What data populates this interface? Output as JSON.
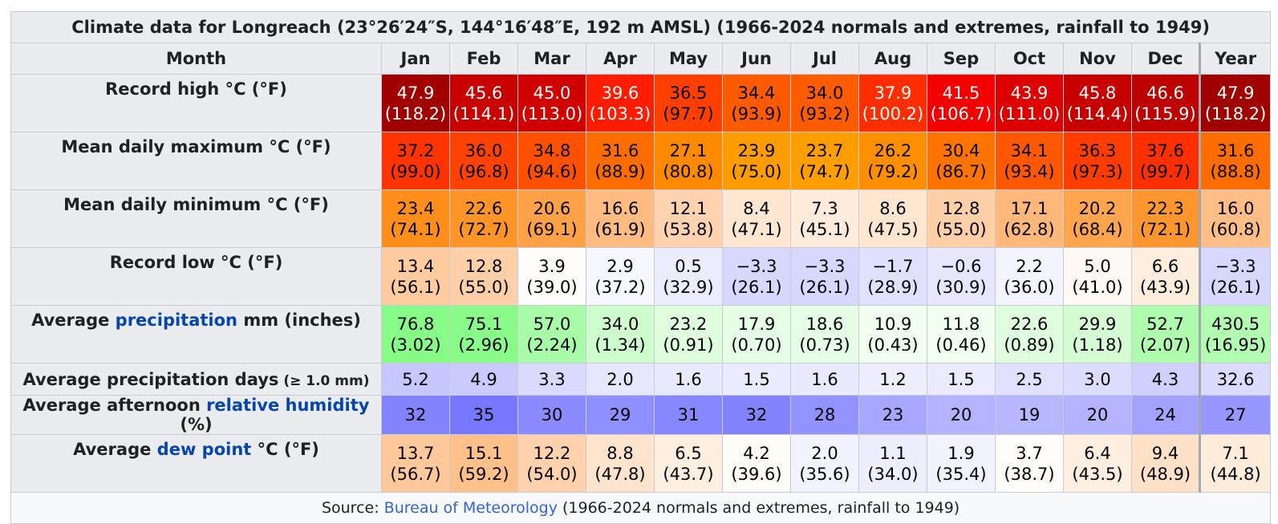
{
  "title": "Climate data for Longreach (23°26′24″S, 144°16′48″E, 192 m AMSL) (1966-2024 normals and extremes, rainfall to 1949)",
  "header": {
    "month_label": "Month",
    "months": [
      "Jan",
      "Feb",
      "Mar",
      "Apr",
      "May",
      "Jun",
      "Jul",
      "Aug",
      "Sep",
      "Oct",
      "Nov",
      "Dec",
      "Year"
    ]
  },
  "rows": [
    {
      "label_pre": "Record high °C (°F)",
      "label_link": "",
      "label_post": "",
      "label_small": "",
      "cells": [
        {
          "c": "47.9",
          "f": "(118.2)",
          "bg": "#a00000",
          "fg": "#ffffff"
        },
        {
          "c": "45.6",
          "f": "(114.1)",
          "bg": "#c90000",
          "fg": "#ffffff"
        },
        {
          "c": "45.0",
          "f": "(113.0)",
          "bg": "#d10000",
          "fg": "#ffffff"
        },
        {
          "c": "39.6",
          "f": "(103.3)",
          "bg": "#ff1c00",
          "fg": "#ffffff"
        },
        {
          "c": "36.5",
          "f": "(97.7)",
          "bg": "#ff3f00",
          "fg": "#000000"
        },
        {
          "c": "34.4",
          "f": "(93.9)",
          "bg": "#ff5a00",
          "fg": "#000000"
        },
        {
          "c": "34.0",
          "f": "(93.2)",
          "bg": "#ff5c00",
          "fg": "#000000"
        },
        {
          "c": "37.9",
          "f": "(100.2)",
          "bg": "#ff2d00",
          "fg": "#ffffff"
        },
        {
          "c": "41.5",
          "f": "(106.7)",
          "bg": "#f40000",
          "fg": "#ffffff"
        },
        {
          "c": "43.9",
          "f": "(111.0)",
          "bg": "#dc0000",
          "fg": "#ffffff"
        },
        {
          "c": "45.8",
          "f": "(114.4)",
          "bg": "#c60000",
          "fg": "#ffffff"
        },
        {
          "c": "46.6",
          "f": "(115.9)",
          "bg": "#bd0000",
          "fg": "#ffffff"
        },
        {
          "c": "47.9",
          "f": "(118.2)",
          "bg": "#a00000",
          "fg": "#ffffff"
        }
      ]
    },
    {
      "label_pre": "Mean daily maximum °C (°F)",
      "label_link": "",
      "label_post": "",
      "label_small": "",
      "cells": [
        {
          "c": "37.2",
          "f": "(99.0)",
          "bg": "#ff3400",
          "fg": "#000000"
        },
        {
          "c": "36.0",
          "f": "(96.8)",
          "bg": "#ff4200",
          "fg": "#000000"
        },
        {
          "c": "34.8",
          "f": "(94.6)",
          "bg": "#ff5000",
          "fg": "#000000"
        },
        {
          "c": "31.6",
          "f": "(88.9)",
          "bg": "#ff6d00",
          "fg": "#000000"
        },
        {
          "c": "27.1",
          "f": "(80.8)",
          "bg": "#ff8a00",
          "fg": "#000000"
        },
        {
          "c": "23.9",
          "f": "(75.0)",
          "bg": "#ff9d00",
          "fg": "#000000"
        },
        {
          "c": "23.7",
          "f": "(74.7)",
          "bg": "#ff9e00",
          "fg": "#000000"
        },
        {
          "c": "26.2",
          "f": "(79.2)",
          "bg": "#ff8f00",
          "fg": "#000000"
        },
        {
          "c": "30.4",
          "f": "(86.7)",
          "bg": "#ff7400",
          "fg": "#000000"
        },
        {
          "c": "34.1",
          "f": "(93.4)",
          "bg": "#ff5800",
          "fg": "#000000"
        },
        {
          "c": "36.3",
          "f": "(97.3)",
          "bg": "#ff3d00",
          "fg": "#000000"
        },
        {
          "c": "37.6",
          "f": "(99.7)",
          "bg": "#ff2f00",
          "fg": "#000000"
        },
        {
          "c": "31.6",
          "f": "(88.8)",
          "bg": "#ff6d00",
          "fg": "#000000"
        }
      ]
    },
    {
      "label_pre": "Mean daily minimum °C (°F)",
      "label_link": "",
      "label_post": "",
      "label_small": "",
      "cells": [
        {
          "c": "23.4",
          "f": "(74.1)",
          "bg": "#ff8f1a",
          "fg": "#000000"
        },
        {
          "c": "22.6",
          "f": "(72.7)",
          "bg": "#ff9527",
          "fg": "#000000"
        },
        {
          "c": "20.6",
          "f": "(69.1)",
          "bg": "#ffa247",
          "fg": "#000000"
        },
        {
          "c": "16.6",
          "f": "(61.9)",
          "bg": "#ffbb80",
          "fg": "#000000"
        },
        {
          "c": "12.1",
          "f": "(53.8)",
          "bg": "#ffd3b0",
          "fg": "#000000"
        },
        {
          "c": "8.4",
          "f": "(47.1)",
          "bg": "#ffe7d2",
          "fg": "#000000"
        },
        {
          "c": "7.3",
          "f": "(45.1)",
          "bg": "#ffecdc",
          "fg": "#000000"
        },
        {
          "c": "8.6",
          "f": "(47.5)",
          "bg": "#ffe6d0",
          "fg": "#000000"
        },
        {
          "c": "12.8",
          "f": "(55.0)",
          "bg": "#ffcfa8",
          "fg": "#000000"
        },
        {
          "c": "17.1",
          "f": "(62.8)",
          "bg": "#ffb87a",
          "fg": "#000000"
        },
        {
          "c": "20.2",
          "f": "(68.4)",
          "bg": "#ffa54e",
          "fg": "#000000"
        },
        {
          "c": "22.3",
          "f": "(72.1)",
          "bg": "#ff972e",
          "fg": "#000000"
        },
        {
          "c": "16.0",
          "f": "(60.8)",
          "bg": "#ffbe86",
          "fg": "#000000"
        }
      ]
    },
    {
      "label_pre": "Record low °C (°F)",
      "label_link": "",
      "label_post": "",
      "label_small": "",
      "cells": [
        {
          "c": "13.4",
          "f": "(56.1)",
          "bg": "#ffcb9f",
          "fg": "#000000"
        },
        {
          "c": "12.8",
          "f": "(55.0)",
          "bg": "#ffcfa8",
          "fg": "#000000"
        },
        {
          "c": "3.9",
          "f": "(39.0)",
          "bg": "#fffdfb",
          "fg": "#000000"
        },
        {
          "c": "2.9",
          "f": "(37.2)",
          "bg": "#f7f7ff",
          "fg": "#000000"
        },
        {
          "c": "0.5",
          "f": "(32.9)",
          "bg": "#ececff",
          "fg": "#000000"
        },
        {
          "c": "−3.3",
          "f": "(26.1)",
          "bg": "#d7d7ff",
          "fg": "#000000"
        },
        {
          "c": "−3.3",
          "f": "(26.1)",
          "bg": "#d7d7ff",
          "fg": "#000000"
        },
        {
          "c": "−1.7",
          "f": "(28.9)",
          "bg": "#e0e0ff",
          "fg": "#000000"
        },
        {
          "c": "−0.6",
          "f": "(30.9)",
          "bg": "#e6e6ff",
          "fg": "#000000"
        },
        {
          "c": "2.2",
          "f": "(36.0)",
          "bg": "#f4f4ff",
          "fg": "#000000"
        },
        {
          "c": "5.0",
          "f": "(41.0)",
          "bg": "#fffaf5",
          "fg": "#000000"
        },
        {
          "c": "6.6",
          "f": "(43.9)",
          "bg": "#ffeede",
          "fg": "#000000"
        },
        {
          "c": "−3.3",
          "f": "(26.1)",
          "bg": "#d7d7ff",
          "fg": "#000000"
        }
      ]
    },
    {
      "label_pre": "Average ",
      "label_link": "precipitation",
      "label_post": " mm (inches)",
      "label_small": "",
      "cells": [
        {
          "c": "76.8",
          "f": "(3.02)",
          "bg": "#86fb86",
          "fg": "#000000"
        },
        {
          "c": "75.1",
          "f": "(2.96)",
          "bg": "#89fb89",
          "fg": "#000000"
        },
        {
          "c": "57.0",
          "f": "(2.24)",
          "bg": "#a8fca8",
          "fg": "#000000"
        },
        {
          "c": "34.0",
          "f": "(1.34)",
          "bg": "#cdfdcd",
          "fg": "#000000"
        },
        {
          "c": "23.2",
          "f": "(0.91)",
          "bg": "#defede",
          "fg": "#000000"
        },
        {
          "c": "17.9",
          "f": "(0.70)",
          "bg": "#e6fee6",
          "fg": "#000000"
        },
        {
          "c": "18.6",
          "f": "(0.73)",
          "bg": "#e5fee5",
          "fg": "#000000"
        },
        {
          "c": "10.9",
          "f": "(0.43)",
          "bg": "#f1fff1",
          "fg": "#000000"
        },
        {
          "c": "11.8",
          "f": "(0.46)",
          "bg": "#f0fff0",
          "fg": "#000000"
        },
        {
          "c": "22.6",
          "f": "(0.89)",
          "bg": "#dffedf",
          "fg": "#000000"
        },
        {
          "c": "29.9",
          "f": "(1.18)",
          "bg": "#d4fdd4",
          "fg": "#000000"
        },
        {
          "c": "52.7",
          "f": "(2.07)",
          "bg": "#affcaf",
          "fg": "#000000"
        },
        {
          "c": "430.5",
          "f": "(16.95)",
          "bg": "#b2fcb2",
          "fg": "#000000"
        }
      ]
    },
    {
      "label_pre": "Average precipitation days",
      "label_link": "",
      "label_post": "",
      "label_small": " (≥ 1.0 mm)",
      "cells": [
        {
          "c": "5.2",
          "bg": "#c7c7ff",
          "fg": "#000000"
        },
        {
          "c": "4.9",
          "bg": "#cacaff",
          "fg": "#000000"
        },
        {
          "c": "3.3",
          "bg": "#dadaff",
          "fg": "#000000"
        },
        {
          "c": "2.0",
          "bg": "#e6e6ff",
          "fg": "#000000"
        },
        {
          "c": "1.6",
          "bg": "#eaeaff",
          "fg": "#000000"
        },
        {
          "c": "1.5",
          "bg": "#ebebff",
          "fg": "#000000"
        },
        {
          "c": "1.6",
          "bg": "#eaeaff",
          "fg": "#000000"
        },
        {
          "c": "1.2",
          "bg": "#eeeeff",
          "fg": "#000000"
        },
        {
          "c": "1.5",
          "bg": "#ebebff",
          "fg": "#000000"
        },
        {
          "c": "2.5",
          "bg": "#e1e1ff",
          "fg": "#000000"
        },
        {
          "c": "3.0",
          "bg": "#dcdcff",
          "fg": "#000000"
        },
        {
          "c": "4.3",
          "bg": "#d0d0ff",
          "fg": "#000000"
        },
        {
          "c": "32.6",
          "bg": "#dbdbff",
          "fg": "#000000"
        }
      ]
    },
    {
      "label_pre": "Average afternoon ",
      "label_link": "relative humidity",
      "label_post": " (%)",
      "label_small": "",
      "cells": [
        {
          "c": "32",
          "bg": "#8383ff",
          "fg": "#000000"
        },
        {
          "c": "35",
          "bg": "#7777ff",
          "fg": "#000000"
        },
        {
          "c": "30",
          "bg": "#8b8bff",
          "fg": "#000000"
        },
        {
          "c": "29",
          "bg": "#8f8fff",
          "fg": "#000000"
        },
        {
          "c": "31",
          "bg": "#8787ff",
          "fg": "#000000"
        },
        {
          "c": "32",
          "bg": "#8383ff",
          "fg": "#000000"
        },
        {
          "c": "28",
          "bg": "#9393ff",
          "fg": "#000000"
        },
        {
          "c": "23",
          "bg": "#a7a7ff",
          "fg": "#000000"
        },
        {
          "c": "20",
          "bg": "#b3b3ff",
          "fg": "#000000"
        },
        {
          "c": "19",
          "bg": "#b7b7ff",
          "fg": "#000000"
        },
        {
          "c": "20",
          "bg": "#b3b3ff",
          "fg": "#000000"
        },
        {
          "c": "24",
          "bg": "#a3a3ff",
          "fg": "#000000"
        },
        {
          "c": "27",
          "bg": "#9797ff",
          "fg": "#000000"
        }
      ]
    },
    {
      "label_pre": "Average ",
      "label_link": "dew point",
      "label_post": " °C (°F)",
      "label_small": "",
      "cells": [
        {
          "c": "13.7",
          "f": "(56.7)",
          "bg": "#ffc89a",
          "fg": "#000000"
        },
        {
          "c": "15.1",
          "f": "(59.2)",
          "bg": "#ffc08a",
          "fg": "#000000"
        },
        {
          "c": "12.2",
          "f": "(54.0)",
          "bg": "#ffd2ad",
          "fg": "#000000"
        },
        {
          "c": "8.8",
          "f": "(47.8)",
          "bg": "#ffe4cd",
          "fg": "#000000"
        },
        {
          "c": "6.5",
          "f": "(43.7)",
          "bg": "#ffefe0",
          "fg": "#000000"
        },
        {
          "c": "4.2",
          "f": "(39.6)",
          "bg": "#fffbf7",
          "fg": "#000000"
        },
        {
          "c": "2.0",
          "f": "(35.6)",
          "bg": "#f3f3ff",
          "fg": "#000000"
        },
        {
          "c": "1.1",
          "f": "(34.0)",
          "bg": "#eeeeff",
          "fg": "#000000"
        },
        {
          "c": "1.9",
          "f": "(35.4)",
          "bg": "#f2f2ff",
          "fg": "#000000"
        },
        {
          "c": "3.7",
          "f": "(38.7)",
          "bg": "#fffcfa",
          "fg": "#000000"
        },
        {
          "c": "6.4",
          "f": "(43.5)",
          "bg": "#ffefe1",
          "fg": "#000000"
        },
        {
          "c": "9.4",
          "f": "(48.9)",
          "bg": "#ffe1c7",
          "fg": "#000000"
        },
        {
          "c": "7.1",
          "f": "(44.8)",
          "bg": "#ffecdb",
          "fg": "#000000"
        }
      ]
    }
  ],
  "source": {
    "prefix": "Source: ",
    "link": "Bureau of Meteorology",
    "suffix": " (1966-2024 normals and extremes, rainfall to 1949)"
  }
}
